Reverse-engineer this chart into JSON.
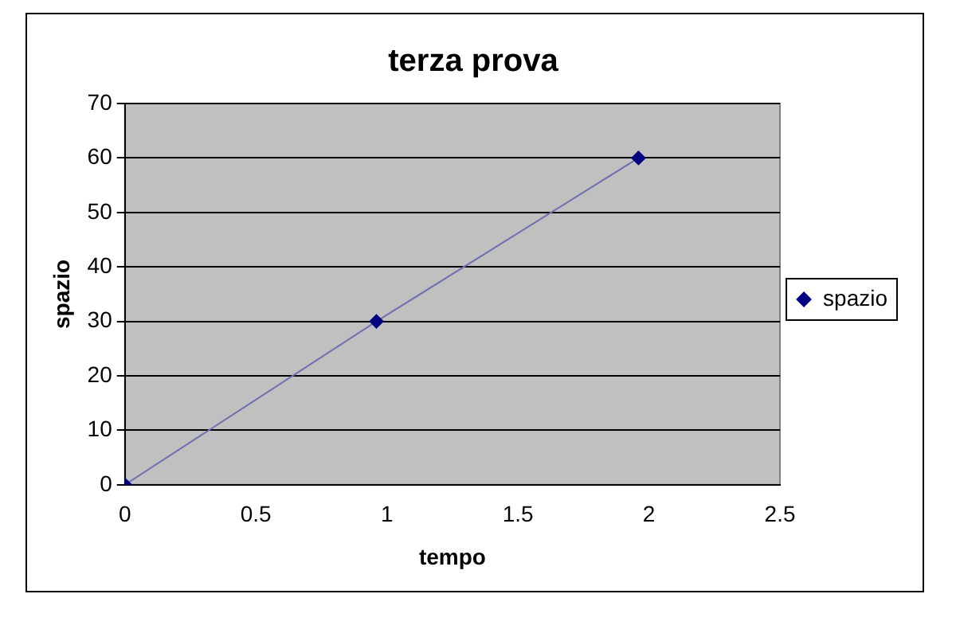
{
  "chart_data": {
    "type": "line",
    "title": "terza prova",
    "xlabel": "tempo",
    "ylabel": "spazio",
    "x": [
      0,
      0.96,
      1.96
    ],
    "series": [
      {
        "name": "spazio",
        "color": "#000080",
        "values": [
          0,
          30,
          60
        ]
      }
    ],
    "xlim": [
      0,
      2.5
    ],
    "xticks": [
      0,
      0.5,
      1,
      1.5,
      2,
      2.5
    ],
    "ylim": [
      0,
      70
    ],
    "yticks": [
      0,
      10,
      20,
      30,
      40,
      50,
      60,
      70
    ],
    "grid": "y",
    "legend": "right",
    "marker": "diamond",
    "line_style": "solid"
  }
}
